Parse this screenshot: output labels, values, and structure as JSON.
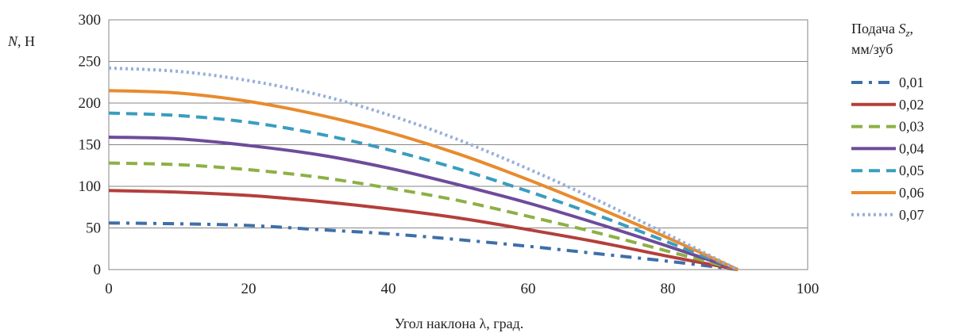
{
  "chart_data": {
    "type": "line",
    "title": "",
    "xlabel": "Угол наклона λ, град.",
    "ylabel": {
      "var": "N",
      "rest": ", Н"
    },
    "xlim": [
      0,
      100
    ],
    "ylim": [
      0,
      300
    ],
    "xticks": [
      "0",
      "20",
      "40",
      "60",
      "80",
      "100"
    ],
    "yticks": [
      "0",
      "50",
      "100",
      "150",
      "200",
      "250",
      "300"
    ],
    "grid": "horizontal",
    "legend_position": "right",
    "legend_title": {
      "line1_prefix": "Подача ",
      "line1_var": "S",
      "line1_sub": "z",
      "line1_suffix": ",",
      "line2": "мм/зуб"
    },
    "x": [
      0,
      10,
      20,
      30,
      40,
      50,
      60,
      70,
      80,
      90
    ],
    "series": [
      {
        "name": "0,01",
        "color": "#3E6FA8",
        "style": "dash-dot",
        "values": [
          56,
          55,
          53,
          48,
          43,
          36,
          28,
          19,
          10,
          0
        ]
      },
      {
        "name": "0,02",
        "color": "#B33F3C",
        "style": "solid",
        "values": [
          95,
          93,
          89,
          82,
          73,
          62,
          48,
          33,
          16,
          0
        ]
      },
      {
        "name": "0,03",
        "color": "#8DB045",
        "style": "dash",
        "values": [
          128,
          126,
          120,
          111,
          98,
          83,
          64,
          44,
          22,
          0
        ]
      },
      {
        "name": "0,04",
        "color": "#6E4B9B",
        "style": "solid",
        "values": [
          159,
          157,
          149,
          138,
          122,
          102,
          80,
          55,
          28,
          0
        ]
      },
      {
        "name": "0,05",
        "color": "#3A9DBF",
        "style": "dash",
        "values": [
          188,
          185,
          177,
          163,
          144,
          121,
          94,
          65,
          33,
          0
        ]
      },
      {
        "name": "0,06",
        "color": "#E88B2E",
        "style": "solid",
        "values": [
          215,
          212,
          202,
          186,
          165,
          139,
          108,
          74,
          38,
          0
        ]
      },
      {
        "name": "0,07",
        "color": "#96AEDB",
        "style": "dot",
        "values": [
          242,
          238,
          227,
          210,
          186,
          156,
          121,
          83,
          42,
          0
        ]
      }
    ]
  }
}
